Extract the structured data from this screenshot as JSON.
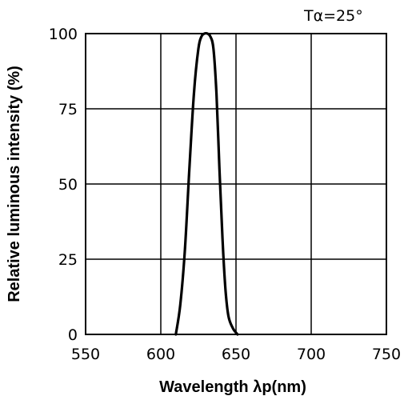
{
  "chart_data": {
    "type": "line",
    "title": "",
    "annotation": "Tα=25°",
    "xlabel": "Wavelength λp(nm)",
    "ylabel": "Relative luminous intensity (%)",
    "xlim": [
      550,
      750
    ],
    "ylim": [
      0,
      100
    ],
    "x_ticks": [
      550,
      600,
      650,
      700,
      750
    ],
    "y_ticks": [
      0,
      25,
      50,
      75,
      100
    ],
    "grid": true,
    "series": [
      {
        "x": [
          610,
          613,
          616,
          619,
          622,
          625,
          627,
          629,
          631,
          633,
          635,
          637,
          639,
          641,
          643,
          645,
          648,
          651
        ],
        "y": [
          0,
          10,
          28,
          55,
          80,
          95,
          99,
          100,
          100,
          99,
          95,
          80,
          55,
          32,
          15,
          6,
          2,
          0
        ]
      }
    ]
  }
}
